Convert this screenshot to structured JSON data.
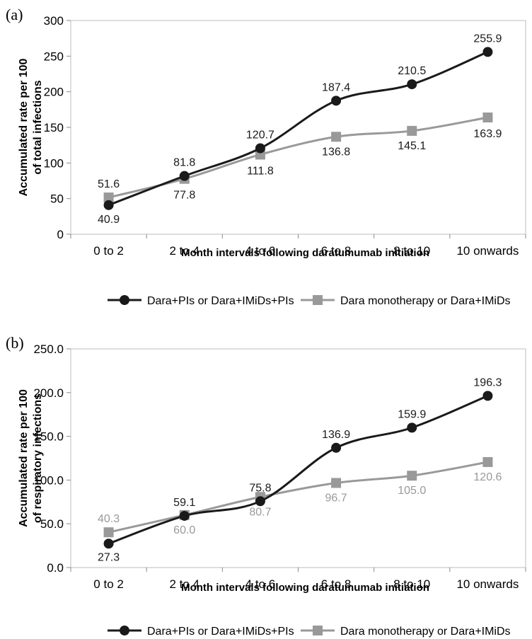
{
  "chart_data": [
    {
      "panel_label": "(a)",
      "type": "line",
      "categories": [
        "0 to 2",
        "2 to 4",
        "4 to 6",
        "6 to 8",
        "8 to 10",
        "10 onwards"
      ],
      "series": [
        {
          "name": "Dara+PIs or Dara+IMiDs+PIs",
          "values": [
            40.9,
            81.8,
            120.7,
            187.4,
            210.5,
            255.9
          ],
          "color": "#1a1a1a",
          "marker": "circle"
        },
        {
          "name": "Dara monotherapy or Dara+IMiDs",
          "values": [
            51.6,
            77.8,
            111.8,
            136.8,
            145.1,
            163.9
          ],
          "color": "#999999",
          "marker": "square"
        }
      ],
      "data_labels": [
        [
          "40.9",
          "81.8",
          "120.7",
          "187.4",
          "210.5",
          "255.9"
        ],
        [
          "51.6",
          "77.8",
          "111.8",
          "136.8",
          "145.1",
          "163.9"
        ]
      ],
      "label_colors": [
        "#1a1a1a",
        "#1a1a1a"
      ],
      "xlabel": "Month intervals following daratumumab initiation",
      "ylabel": [
        "Accumulated rate per 100",
        "of total infections"
      ],
      "ylim": [
        0,
        300
      ],
      "yticks": [
        0,
        50,
        100,
        150,
        200,
        250,
        300
      ],
      "ytick_labels": [
        "0",
        "50",
        "100",
        "150",
        "200",
        "250",
        "300"
      ],
      "grid": false,
      "legend_position": "bottom"
    },
    {
      "panel_label": "(b)",
      "type": "line",
      "categories": [
        "0 to 2",
        "2 to 4",
        "4 to 6",
        "6 to 8",
        "8 to 10",
        "10 onwards"
      ],
      "series": [
        {
          "name": "Dara+PIs or Dara+IMiDs+PIs",
          "values": [
            27.3,
            59.1,
            75.8,
            136.9,
            159.9,
            196.3
          ],
          "color": "#1a1a1a",
          "marker": "circle"
        },
        {
          "name": "Dara monotherapy or Dara+IMiDs",
          "values": [
            40.3,
            60.0,
            80.7,
            96.7,
            105.0,
            120.6
          ],
          "color": "#999999",
          "marker": "square"
        }
      ],
      "data_labels": [
        [
          "27.3",
          "59.1",
          "75.8",
          "136.9",
          "159.9",
          "196.3"
        ],
        [
          "40.3",
          "60.0",
          "80.7",
          "96.7",
          "105.0",
          "120.6"
        ]
      ],
      "label_colors": [
        "#1a1a1a",
        "#999999"
      ],
      "xlabel": "Month intervals following daratumumab initiation",
      "ylabel": [
        "Accumulated rate per 100",
        "of respiratory infections"
      ],
      "ylim": [
        0,
        250
      ],
      "yticks": [
        0,
        50,
        100,
        150,
        200,
        250
      ],
      "ytick_labels": [
        "0.0",
        "50.0",
        "100.0",
        "150.0",
        "200.0",
        "250.0"
      ],
      "grid": false,
      "legend_position": "bottom"
    }
  ]
}
